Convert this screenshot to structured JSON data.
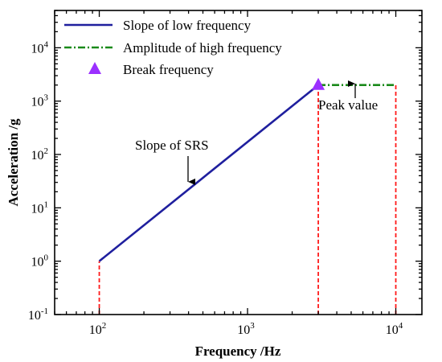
{
  "chart_data": {
    "type": "line",
    "xlabel": "Frequency /Hz",
    "ylabel": "Acceleration /g",
    "x_scale": "log",
    "y_scale": "log",
    "xlim": [
      50,
      15000
    ],
    "ylim": [
      0.1,
      50000
    ],
    "x_ticks": [
      {
        "value": 100,
        "base": "10",
        "exp": "2"
      },
      {
        "value": 1000,
        "base": "10",
        "exp": "3"
      },
      {
        "value": 10000,
        "base": "10",
        "exp": "4"
      }
    ],
    "y_ticks": [
      {
        "value": 0.1,
        "base": "10",
        "exp": "-1"
      },
      {
        "value": 1,
        "base": "10",
        "exp": "0"
      },
      {
        "value": 10,
        "base": "10",
        "exp": "1"
      },
      {
        "value": 100,
        "base": "10",
        "exp": "2"
      },
      {
        "value": 1000,
        "base": "10",
        "exp": "3"
      },
      {
        "value": 10000,
        "base": "10",
        "exp": "4"
      }
    ],
    "series": [
      {
        "name": "Slope of low frequency",
        "style": "solid",
        "color": "#1f1f9e",
        "x": [
          100,
          3000
        ],
        "y": [
          1,
          2000
        ]
      },
      {
        "name": "Amplitude of high frequency",
        "style": "dash-dot",
        "color": "#1a8a1a",
        "x": [
          3000,
          10000
        ],
        "y": [
          2000,
          2000
        ]
      },
      {
        "name": "Break frequency",
        "style": "marker-triangle",
        "color": "#9b30ff",
        "x": [
          3000
        ],
        "y": [
          2000
        ]
      }
    ],
    "guide_lines": {
      "color": "#ff1a1a",
      "x": [
        100,
        3000,
        10000
      ],
      "y_top": [
        1,
        2000,
        2000
      ]
    },
    "annotations": [
      {
        "text": "Slope of SRS",
        "arrow_to": {
          "x": 400,
          "y": 22
        }
      },
      {
        "text": "Peak value",
        "arrow_to": {
          "x": 5700,
          "y": 2000
        }
      }
    ],
    "legend_position": "top-left",
    "grid": false
  }
}
